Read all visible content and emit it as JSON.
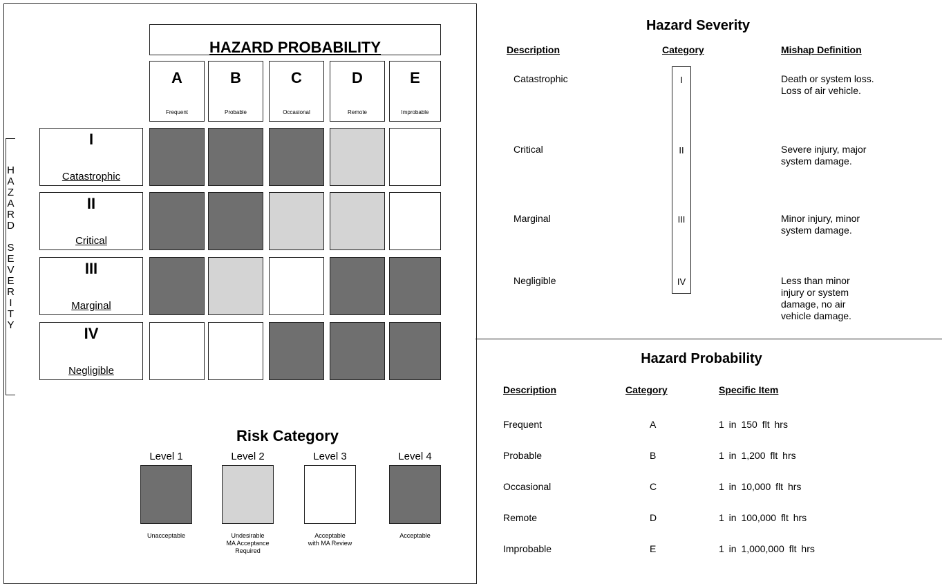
{
  "matrix": {
    "title": "HAZARD PROBABILITY",
    "side_label": "HAZARD SEVERITY",
    "columns": [
      {
        "letter": "A",
        "label": "Frequent"
      },
      {
        "letter": "B",
        "label": "Probable"
      },
      {
        "letter": "C",
        "label": "Occasional"
      },
      {
        "letter": "D",
        "label": "Remote"
      },
      {
        "letter": "E",
        "label": "Improbable"
      }
    ],
    "rows": [
      {
        "numeral": "I",
        "label": "Catastrophic"
      },
      {
        "numeral": "II",
        "label": "Critical"
      },
      {
        "numeral": "III",
        "label": "Marginal"
      },
      {
        "numeral": "IV",
        "label": "Negligible"
      }
    ],
    "cell_colors": [
      [
        "#6f6f6f",
        "#6f6f6f",
        "#6f6f6f",
        "#d4d4d4",
        "#ffffff"
      ],
      [
        "#6f6f6f",
        "#6f6f6f",
        "#d4d4d4",
        "#d4d4d4",
        "#ffffff"
      ],
      [
        "#6f6f6f",
        "#d4d4d4",
        "#ffffff",
        "#6f6f6f",
        "#6f6f6f"
      ],
      [
        "#ffffff",
        "#ffffff",
        "#6f6f6f",
        "#6f6f6f",
        "#6f6f6f"
      ]
    ]
  },
  "risk": {
    "title": "Risk Category",
    "levels": [
      {
        "name": "Level 1",
        "color": "#6f6f6f",
        "description": [
          "Unacceptable"
        ]
      },
      {
        "name": "Level 2",
        "color": "#d4d4d4",
        "description": [
          "Undesirable",
          "MA Acceptance",
          "Required"
        ]
      },
      {
        "name": "Level 3",
        "color": "#ffffff",
        "description": [
          "Acceptable",
          "with MA Review"
        ]
      },
      {
        "name": "Level 4",
        "color": "#6f6f6f",
        "description": [
          "Acceptable"
        ]
      }
    ]
  },
  "severity": {
    "title": "Hazard Severity",
    "headers": [
      "Description",
      "Category",
      "Mishap Definition"
    ],
    "rows": [
      {
        "description": "Catastrophic",
        "category": "I",
        "definition": [
          "Death or system loss.",
          "Loss of air vehicle."
        ]
      },
      {
        "description": "Critical",
        "category": "II",
        "definition": [
          "Severe injury, major",
          "system damage."
        ]
      },
      {
        "description": "Marginal",
        "category": "III",
        "definition": [
          "Minor injury, minor",
          "system damage."
        ]
      },
      {
        "description": "Negligible",
        "category": "IV",
        "definition": [
          "Less than minor",
          "injury or system",
          "damage, no air",
          "vehicle damage."
        ]
      }
    ]
  },
  "probability": {
    "title": "Hazard Probability",
    "headers": [
      "Description",
      "Category",
      "Specific Item"
    ],
    "rows": [
      {
        "description": "Frequent",
        "category": "A",
        "item": "1 in 150 flt hrs"
      },
      {
        "description": "Probable",
        "category": "B",
        "item": "1 in 1,200 flt hrs"
      },
      {
        "description": "Occasional",
        "category": "C",
        "item": "1 in 10,000 flt hrs"
      },
      {
        "description": "Remote",
        "category": "D",
        "item": "1 in 100,000 flt hrs"
      },
      {
        "description": "Improbable",
        "category": "E",
        "item": "1 in 1,000,000 flt hrs"
      }
    ]
  }
}
